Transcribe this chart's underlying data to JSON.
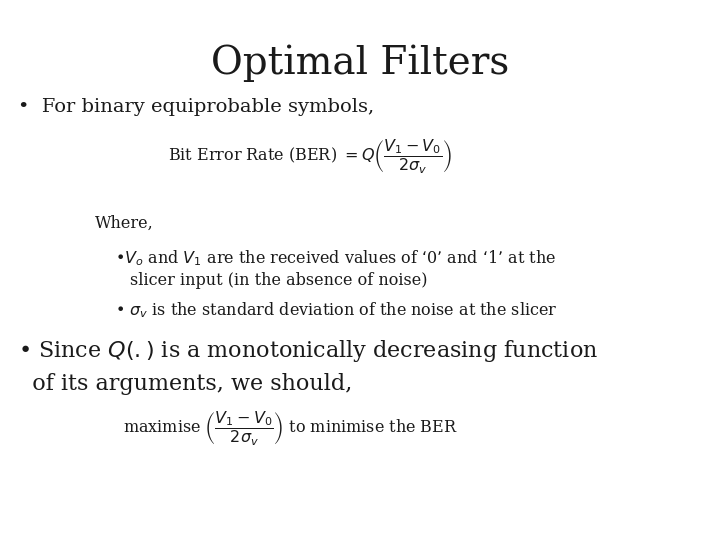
{
  "background_color": "#ffffff",
  "title": "Optimal Filters",
  "title_fontsize": 28,
  "title_font": "DejaVu Serif",
  "body_fontsize": 14,
  "body_font": "DejaVu Serif",
  "small_fontsize": 11.5,
  "bullet1": "For binary equiprobable symbols,",
  "ber_formula": "Bit Error Rate (BER) $= Q\\left(\\dfrac{V_1 -V_0}{2\\sigma_v}\\right)$",
  "where_text": "Where,",
  "sub_bullet1a": "$V_o$ and $V_1$ are the received values of ‘0’ and ‘1’ at the",
  "sub_bullet1b": "slicer input (in the absence of noise)",
  "sub_bullet2": "$\\sigma_v$ is the standard deviation of the noise at the slicer",
  "bullet2a": "• Since $Q(.)$ is a monotonically decreasing function",
  "bullet2b": "  of its arguments, we should,",
  "max_formula": "maximise $\\left(\\dfrac{V_1 -V_0}{2\\sigma_v}\\right)$ to minimise the BER",
  "text_color": "#1a1a1a"
}
